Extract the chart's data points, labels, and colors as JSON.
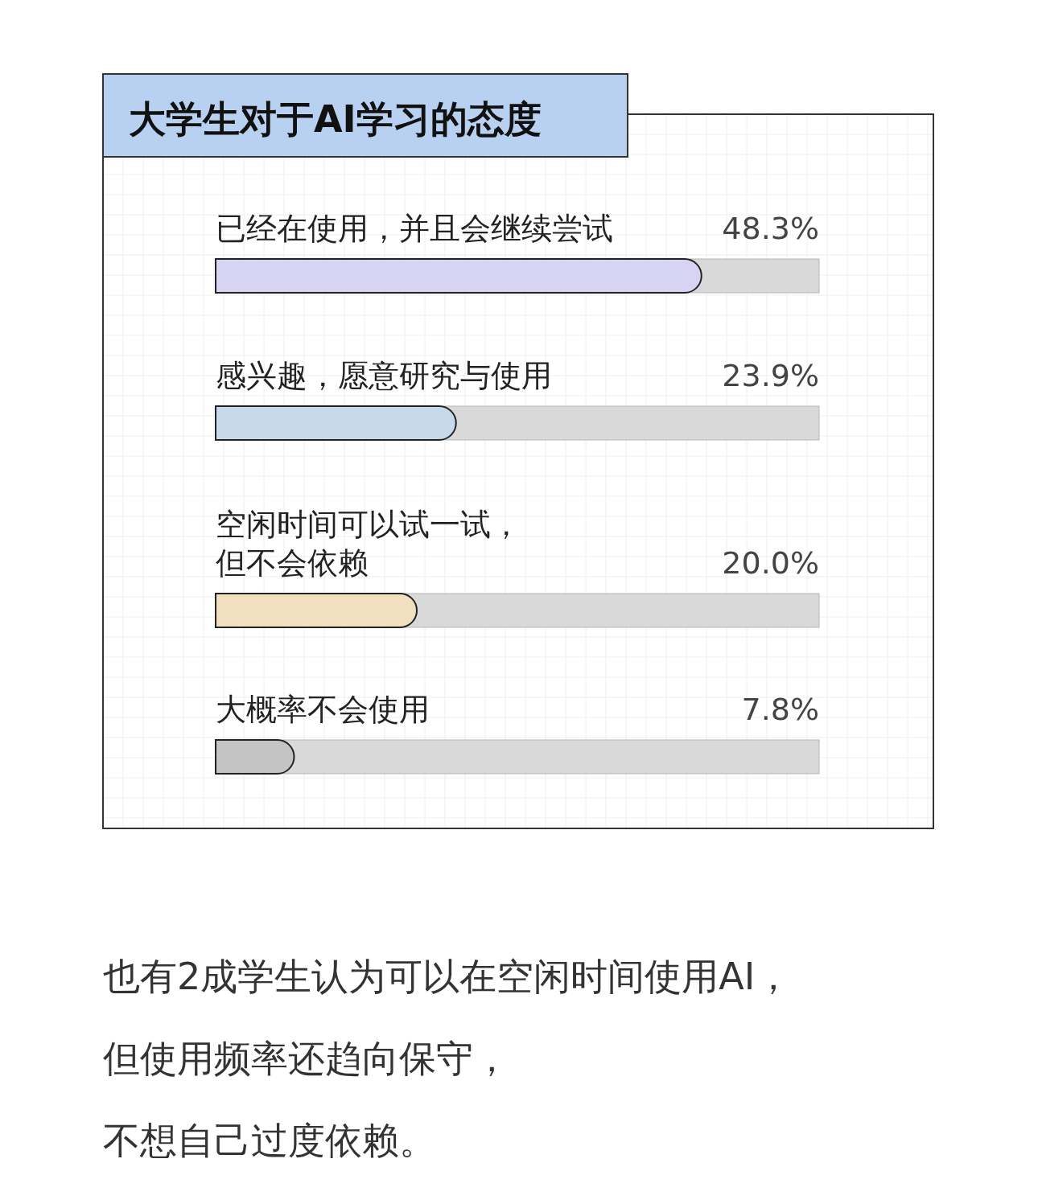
{
  "chart_data": {
    "type": "bar",
    "orientation": "horizontal",
    "title": "大学生对于AI学习的态度",
    "categories": [
      "已经在使用，并且会继续尝试",
      "感兴趣，愿意研究与使用",
      "空闲时间可以试一试，但不会依赖",
      "大概率不会使用"
    ],
    "values": [
      48.3,
      23.9,
      20.0,
      7.8
    ],
    "colors": [
      "#d6d3f3",
      "#c9d9ec",
      "#f1dfc0",
      "#c4c4c4"
    ],
    "value_labels": [
      "48.3%",
      "23.9%",
      "20.0%",
      "7.8%"
    ],
    "xlim": [
      0,
      60
    ],
    "tick_labels": false,
    "annotations": [
      "也有2成学生认为可以在空闲时间使用AI，",
      "但使用频率还趋向保守，",
      "不想自己过度依赖。"
    ]
  }
}
